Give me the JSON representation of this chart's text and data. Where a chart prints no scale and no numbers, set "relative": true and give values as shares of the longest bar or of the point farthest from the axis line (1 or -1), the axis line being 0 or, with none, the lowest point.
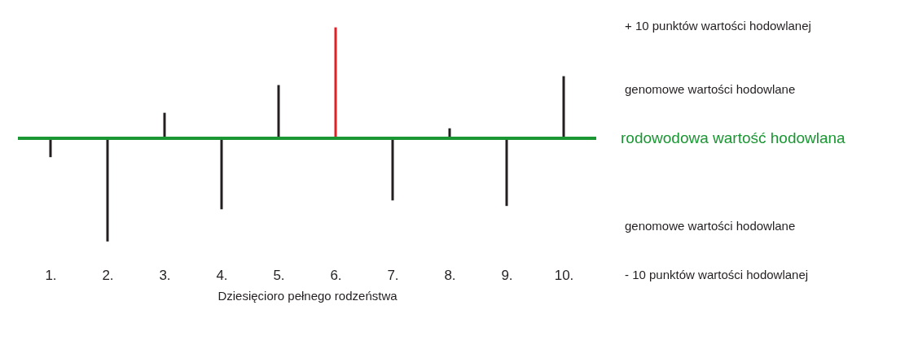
{
  "chart_data": {
    "type": "bar",
    "relative": true,
    "categories": [
      "1.",
      "2.",
      "3.",
      "4.",
      "5.",
      "6.",
      "7.",
      "8.",
      "9.",
      "10."
    ],
    "values": [
      -0.17,
      -0.93,
      0.23,
      -0.64,
      0.48,
      1,
      -0.56,
      0.09,
      -0.61,
      0.56
    ],
    "colors": [
      "#231f20",
      "#231f20",
      "#231f20",
      "#231f20",
      "#231f20",
      "#e31e24",
      "#231f20",
      "#231f20",
      "#231f20",
      "#231f20"
    ],
    "xlabel": "Dziesięcioro pełnego rodzeństwa",
    "ref_lines": [
      {
        "axis": "y",
        "value": 0,
        "label": "rodowodowa wartość hodowlana",
        "color": "#1a9632"
      }
    ],
    "annotations": [
      "+ 10 punktów wartości hodowlanej",
      "genomowe wartości hodowlane",
      "genomowe wartości hodowlane",
      "- 10 punktów wartości hodowlanej"
    ]
  }
}
